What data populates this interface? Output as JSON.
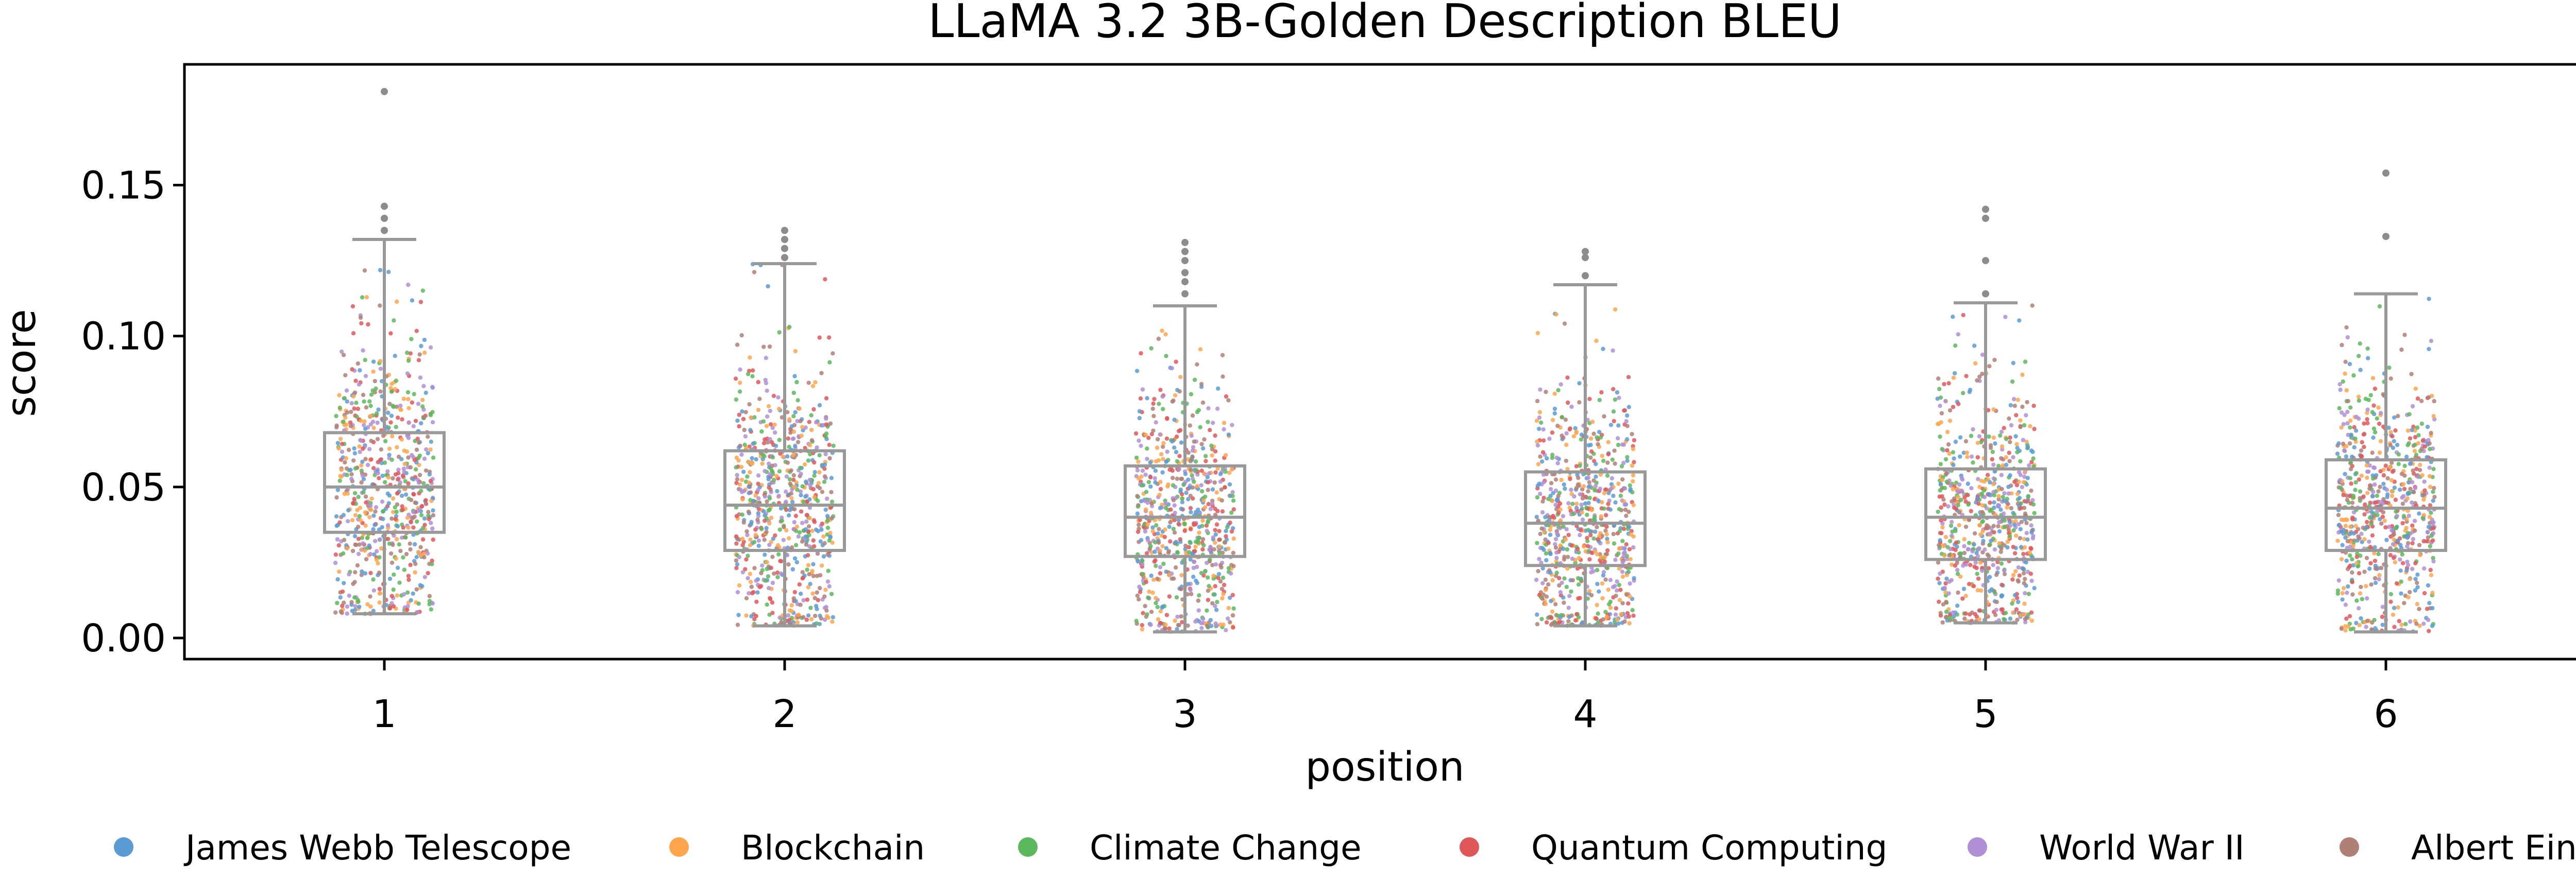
{
  "chart_data": {
    "type": "box",
    "title": "LLaMA 3.2 3B-Golden Description BLEU",
    "xlabel": "position",
    "ylabel": "score",
    "categories": [
      "1",
      "2",
      "3",
      "4",
      "5",
      "6"
    ],
    "ylim": [
      -0.007,
      0.19
    ],
    "yticks": [
      0.0,
      0.05,
      0.1,
      0.15
    ],
    "ytick_labels": [
      "0.00",
      "0.05",
      "0.10",
      "0.15"
    ],
    "grid": false,
    "legend_position": "bottom",
    "box_color": "#999999",
    "boxes": [
      {
        "position": "1",
        "whisker_low": 0.008,
        "q1": 0.035,
        "median": 0.05,
        "q3": 0.068,
        "whisker_high": 0.132,
        "outliers": [
          0.135,
          0.139,
          0.143,
          0.181
        ]
      },
      {
        "position": "2",
        "whisker_low": 0.004,
        "q1": 0.029,
        "median": 0.044,
        "q3": 0.062,
        "whisker_high": 0.124,
        "outliers": [
          0.126,
          0.129,
          0.132,
          0.135
        ]
      },
      {
        "position": "3",
        "whisker_low": 0.002,
        "q1": 0.027,
        "median": 0.04,
        "q3": 0.057,
        "whisker_high": 0.11,
        "outliers": [
          0.114,
          0.118,
          0.121,
          0.125,
          0.128,
          0.131
        ]
      },
      {
        "position": "4",
        "whisker_low": 0.004,
        "q1": 0.024,
        "median": 0.038,
        "q3": 0.055,
        "whisker_high": 0.117,
        "outliers": [
          0.12,
          0.126,
          0.128
        ]
      },
      {
        "position": "5",
        "whisker_low": 0.005,
        "q1": 0.026,
        "median": 0.04,
        "q3": 0.056,
        "whisker_high": 0.111,
        "outliers": [
          0.114,
          0.125,
          0.139,
          0.142
        ]
      },
      {
        "position": "6",
        "whisker_low": 0.002,
        "q1": 0.029,
        "median": 0.043,
        "q3": 0.059,
        "whisker_high": 0.114,
        "outliers": [
          0.133,
          0.154
        ]
      }
    ],
    "series": [
      {
        "name": "James Webb Telescope",
        "color": "#5b9bd5"
      },
      {
        "name": "Blockchain",
        "color": "#ffa64d"
      },
      {
        "name": "Climate Change",
        "color": "#5cb85c"
      },
      {
        "name": "Quantum Computing",
        "color": "#e0575a"
      },
      {
        "name": "World War II",
        "color": "#b08fd6"
      },
      {
        "name": "Albert Einstein",
        "color": "#b07f76"
      }
    ]
  }
}
